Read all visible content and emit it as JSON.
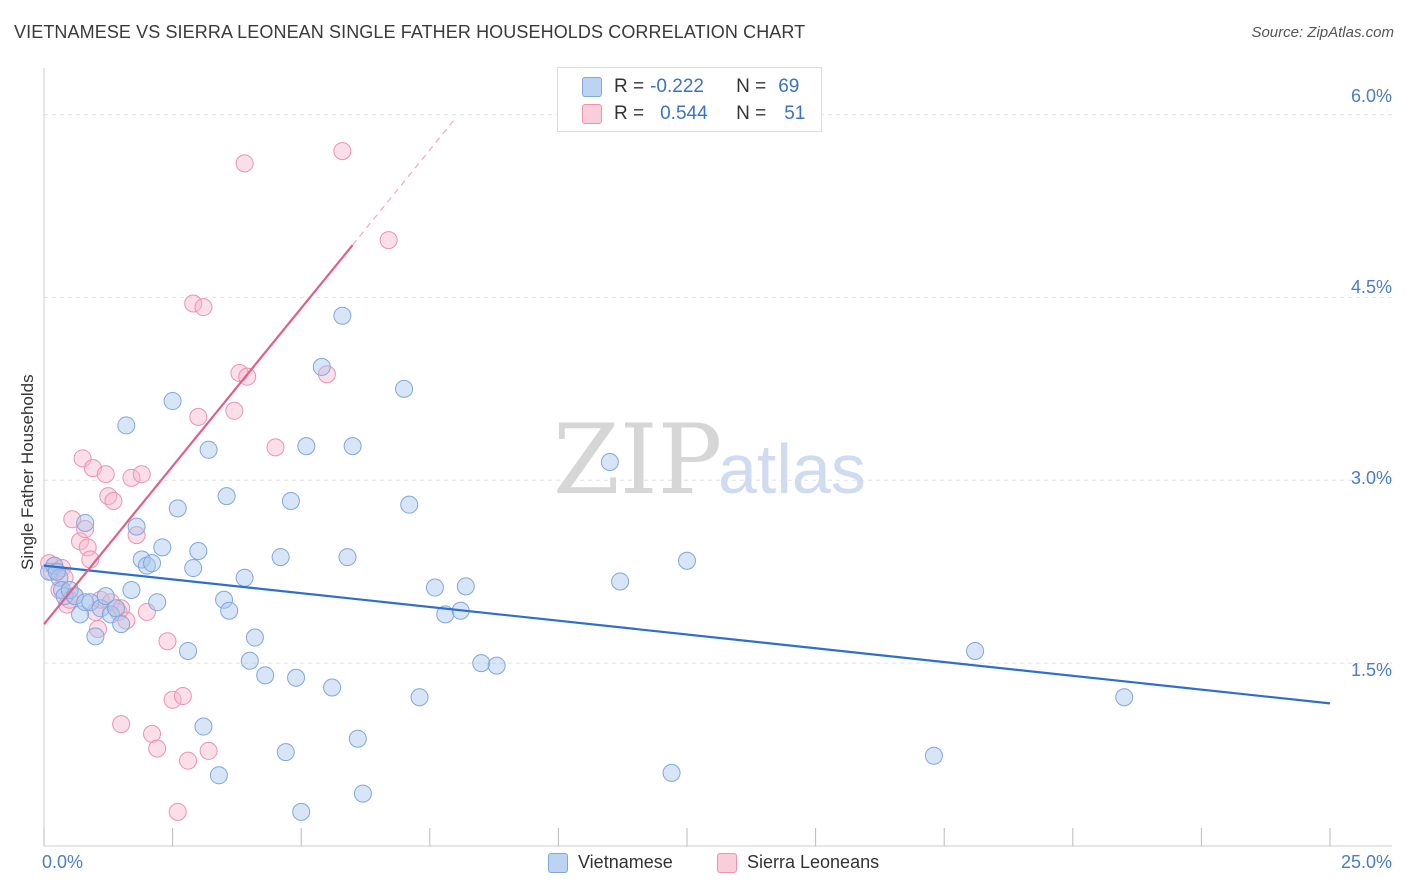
{
  "title": "VIETNAMESE VS SIERRA LEONEAN SINGLE FATHER HOUSEHOLDS CORRELATION CHART",
  "source": "Source: ZipAtlas.com",
  "watermark": {
    "zip": "ZIP",
    "atlas": "atlas"
  },
  "legend": {
    "rows": [
      {
        "r_label": "R =",
        "r_value": "-0.222",
        "n_label": "N =",
        "n_value": "69"
      },
      {
        "r_label": "R =",
        "r_value": "0.544",
        "n_label": "N =",
        "n_value": "51"
      }
    ]
  },
  "bottom_legend": [
    "Vietnamese",
    "Sierra Leoneans"
  ],
  "colors": {
    "blue_fill": "#a9c6ee",
    "blue_stroke": "#7fa7de",
    "blue_line": "#2e6fcc",
    "pink_fill": "#f6b9cc",
    "pink_stroke": "#ec93b0",
    "pink_line": "#e0608a",
    "tick_text": "#4a7cc9",
    "grid": "#e2e2e2"
  },
  "chart_data": {
    "type": "scatter",
    "title": "VIETNAMESE VS SIERRA LEONEAN SINGLE FATHER HOUSEHOLDS CORRELATION CHART",
    "xlabel": "",
    "ylabel": "Single Father Households",
    "xlim": [
      0,
      25
    ],
    "ylim": [
      0,
      6.3
    ],
    "x_tick_labels": [
      "0.0%",
      "25.0%"
    ],
    "y_ticks": [
      1.5,
      3.0,
      4.5,
      6.0
    ],
    "y_tick_labels": [
      "1.5%",
      "3.0%",
      "4.5%",
      "6.0%"
    ],
    "series": [
      {
        "name": "Vietnamese",
        "r": -0.222,
        "n": 69,
        "trend": {
          "x": [
            0.0,
            25.0
          ],
          "y": [
            2.3,
            1.17
          ]
        },
        "points": [
          [
            0.1,
            2.25
          ],
          [
            0.2,
            2.3
          ],
          [
            0.3,
            2.2
          ],
          [
            0.25,
            2.25
          ],
          [
            0.35,
            2.1
          ],
          [
            0.4,
            2.05
          ],
          [
            0.5,
            2.1
          ],
          [
            0.6,
            2.05
          ],
          [
            0.7,
            1.9
          ],
          [
            0.8,
            2.0
          ],
          [
            0.9,
            2.0
          ],
          [
            1.0,
            1.72
          ],
          [
            1.1,
            1.95
          ],
          [
            1.2,
            2.05
          ],
          [
            1.3,
            1.9
          ],
          [
            1.4,
            1.95
          ],
          [
            1.5,
            1.82
          ],
          [
            0.8,
            2.65
          ],
          [
            1.6,
            3.45
          ],
          [
            1.7,
            2.1
          ],
          [
            1.8,
            2.62
          ],
          [
            1.9,
            2.35
          ],
          [
            2.0,
            2.3
          ],
          [
            2.1,
            2.32
          ],
          [
            2.2,
            2.0
          ],
          [
            2.3,
            2.45
          ],
          [
            2.5,
            3.65
          ],
          [
            2.6,
            2.77
          ],
          [
            2.8,
            1.6
          ],
          [
            2.9,
            2.28
          ],
          [
            3.0,
            2.42
          ],
          [
            3.1,
            0.98
          ],
          [
            3.2,
            3.25
          ],
          [
            3.4,
            0.58
          ],
          [
            3.5,
            2.02
          ],
          [
            3.55,
            2.87
          ],
          [
            3.6,
            1.93
          ],
          [
            3.9,
            2.2
          ],
          [
            4.0,
            1.52
          ],
          [
            4.1,
            1.71
          ],
          [
            4.3,
            1.4
          ],
          [
            4.6,
            2.37
          ],
          [
            4.7,
            0.77
          ],
          [
            4.8,
            2.83
          ],
          [
            4.9,
            1.38
          ],
          [
            5.0,
            0.28
          ],
          [
            5.1,
            3.28
          ],
          [
            5.4,
            3.93
          ],
          [
            5.6,
            1.3
          ],
          [
            5.8,
            4.35
          ],
          [
            5.9,
            2.37
          ],
          [
            6.0,
            3.28
          ],
          [
            6.1,
            0.88
          ],
          [
            6.2,
            0.43
          ],
          [
            7.0,
            3.75
          ],
          [
            7.1,
            2.8
          ],
          [
            7.3,
            1.22
          ],
          [
            7.6,
            2.12
          ],
          [
            7.8,
            1.9
          ],
          [
            8.1,
            1.93
          ],
          [
            8.2,
            2.13
          ],
          [
            8.5,
            1.5
          ],
          [
            8.8,
            1.48
          ],
          [
            11.0,
            3.15
          ],
          [
            11.2,
            2.17
          ],
          [
            12.2,
            0.6
          ],
          [
            12.5,
            2.34
          ],
          [
            17.3,
            0.74
          ],
          [
            18.1,
            1.6
          ],
          [
            21.0,
            1.22
          ]
        ]
      },
      {
        "name": "Sierra Leoneans",
        "r": 0.544,
        "n": 51,
        "trend": {
          "x": [
            0.0,
            6.0
          ],
          "y": [
            1.82,
            4.93
          ]
        },
        "trend_dashed": {
          "x": [
            6.0,
            8.0
          ],
          "y": [
            4.93,
            5.97
          ]
        },
        "points": [
          [
            0.1,
            2.32
          ],
          [
            0.15,
            2.25
          ],
          [
            0.2,
            2.3
          ],
          [
            0.25,
            2.25
          ],
          [
            0.3,
            2.1
          ],
          [
            0.35,
            2.28
          ],
          [
            0.4,
            2.2
          ],
          [
            0.45,
            1.98
          ],
          [
            0.5,
            2.02
          ],
          [
            0.55,
            2.68
          ],
          [
            0.6,
            2.05
          ],
          [
            0.7,
            2.5
          ],
          [
            0.75,
            3.18
          ],
          [
            0.8,
            2.6
          ],
          [
            0.85,
            2.45
          ],
          [
            0.9,
            2.35
          ],
          [
            0.95,
            3.1
          ],
          [
            1.0,
            1.92
          ],
          [
            1.05,
            1.78
          ],
          [
            1.1,
            2.02
          ],
          [
            1.2,
            3.05
          ],
          [
            1.25,
            2.87
          ],
          [
            1.3,
            2.0
          ],
          [
            1.35,
            2.83
          ],
          [
            1.45,
            1.92
          ],
          [
            1.5,
            1.95
          ],
          [
            1.6,
            1.85
          ],
          [
            1.7,
            3.02
          ],
          [
            1.8,
            2.55
          ],
          [
            1.9,
            3.05
          ],
          [
            2.0,
            1.92
          ],
          [
            2.1,
            0.92
          ],
          [
            2.2,
            0.8
          ],
          [
            2.4,
            1.68
          ],
          [
            2.5,
            1.2
          ],
          [
            2.6,
            0.28
          ],
          [
            2.7,
            1.23
          ],
          [
            2.8,
            0.7
          ],
          [
            2.9,
            4.45
          ],
          [
            3.0,
            3.52
          ],
          [
            3.1,
            4.42
          ],
          [
            3.2,
            0.78
          ],
          [
            1.5,
            1.0
          ],
          [
            3.7,
            3.57
          ],
          [
            3.8,
            3.88
          ],
          [
            3.9,
            5.6
          ],
          [
            3.95,
            3.85
          ],
          [
            4.5,
            3.27
          ],
          [
            5.5,
            3.87
          ],
          [
            5.8,
            5.7
          ],
          [
            6.7,
            4.97
          ]
        ]
      }
    ]
  }
}
